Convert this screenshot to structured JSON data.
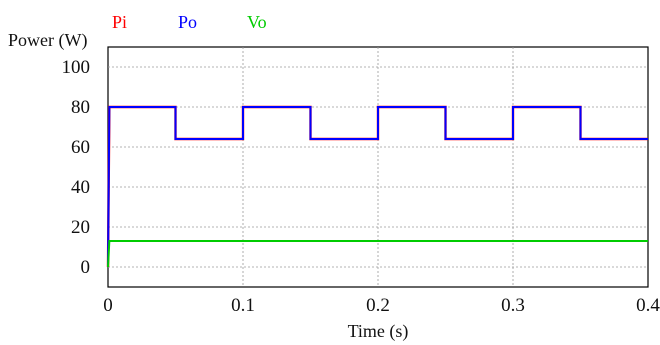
{
  "chart_data": {
    "type": "line",
    "xlabel": "Time (s)",
    "ylabel": "Power (W)",
    "xlim": [
      0,
      0.4
    ],
    "ylim": [
      -10,
      110
    ],
    "x_ticks": [
      0,
      0.1,
      0.2,
      0.3,
      0.4
    ],
    "x_tick_labels": [
      "0",
      "0.1",
      "0.2",
      "0.3",
      "0.4"
    ],
    "y_ticks": [
      0,
      20,
      40,
      60,
      80,
      100
    ],
    "y_tick_labels": [
      "0",
      "20",
      "40",
      "60",
      "80",
      "100"
    ],
    "grid": true,
    "legend_position": "top-left",
    "series": [
      {
        "name": "Pi",
        "color": "#ff0000",
        "x": [
          0,
          0.001,
          0.05,
          0.05,
          0.1,
          0.1,
          0.15,
          0.15,
          0.2,
          0.2,
          0.25,
          0.25,
          0.3,
          0.3,
          0.35,
          0.35,
          0.4
        ],
        "y": [
          0,
          80,
          80,
          64,
          64,
          80,
          80,
          64,
          64,
          80,
          80,
          64,
          64,
          80,
          80,
          64,
          64
        ]
      },
      {
        "name": "Po",
        "color": "#0000ff",
        "x": [
          0,
          0.001,
          0.05,
          0.05,
          0.1,
          0.1,
          0.15,
          0.15,
          0.2,
          0.2,
          0.25,
          0.25,
          0.3,
          0.3,
          0.35,
          0.35,
          0.4
        ],
        "y": [
          0,
          80,
          80,
          64,
          64,
          80,
          80,
          64,
          64,
          80,
          80,
          64,
          64,
          80,
          80,
          64,
          64
        ]
      },
      {
        "name": "Vo",
        "color": "#00cc00",
        "x": [
          0,
          0.001,
          0.4
        ],
        "y": [
          0,
          13,
          13
        ]
      }
    ]
  }
}
